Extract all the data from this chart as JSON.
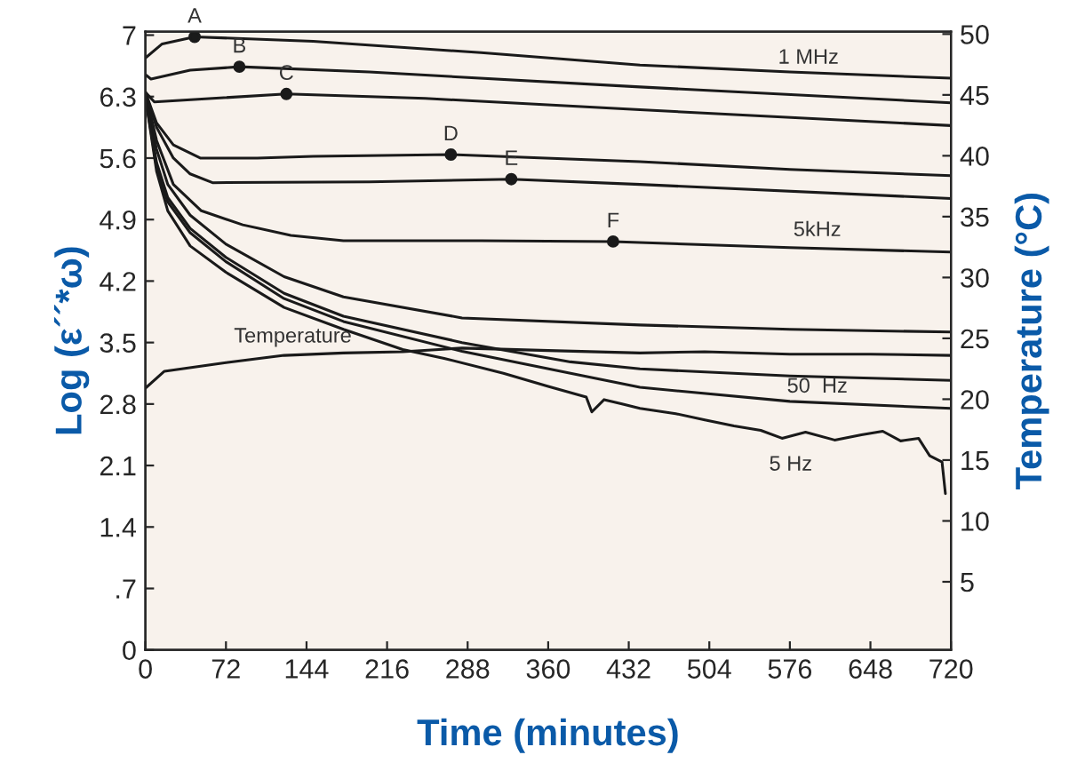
{
  "chart_data": {
    "type": "line",
    "xlabel": "Time (minutes)",
    "ylabel": "Log (ε´´*ω)",
    "y2label": "Temperature (°C)",
    "xlim": [
      0,
      720
    ],
    "xticks": [
      0,
      72,
      144,
      216,
      288,
      360,
      432,
      504,
      576,
      648,
      720
    ],
    "ylim": [
      0,
      7.04
    ],
    "yticks": [
      0,
      {
        "value": 0.7,
        "label": ".7"
      },
      1.4,
      2.1,
      2.8,
      3.5,
      4.2,
      4.9,
      5.6,
      6.3,
      7
    ],
    "y2lim": [
      -0.6,
      50.2
    ],
    "y2ticks": [
      5,
      10,
      15,
      20,
      25,
      30,
      35,
      40,
      45,
      50
    ],
    "grid": false,
    "legend": false,
    "line_style": "solid",
    "marker": "none",
    "series": [
      {
        "color": "#1a1a1a",
        "x": [
          0,
          15,
          44,
          150,
          300,
          442,
          576,
          720
        ],
        "values": [
          6.74,
          6.9,
          6.98,
          6.93,
          6.8,
          6.66,
          6.58,
          6.51
        ]
      },
      {
        "color": "#1a1a1a",
        "x": [
          0,
          5,
          40,
          84,
          200,
          442,
          720
        ],
        "values": [
          6.55,
          6.5,
          6.6,
          6.64,
          6.58,
          6.41,
          6.23
        ]
      },
      {
        "color": "#1a1a1a",
        "x": [
          0,
          8,
          60,
          126,
          250,
          442,
          720
        ],
        "values": [
          6.35,
          6.24,
          6.28,
          6.33,
          6.28,
          6.15,
          5.97
        ]
      },
      {
        "color": "#1a1a1a",
        "x": [
          0,
          10,
          25,
          49,
          100,
          150,
          273,
          442,
          576,
          720
        ],
        "values": [
          6.35,
          6.0,
          5.75,
          5.6,
          5.6,
          5.62,
          5.64,
          5.56,
          5.47,
          5.4
        ]
      },
      {
        "color": "#1a1a1a",
        "x": [
          0,
          10,
          25,
          40,
          60,
          200,
          327,
          442,
          720
        ],
        "values": [
          6.35,
          5.95,
          5.6,
          5.42,
          5.32,
          5.33,
          5.36,
          5.3,
          5.14
        ]
      },
      {
        "color": "#1a1a1a",
        "x": [
          0,
          10,
          25,
          50,
          87,
          130,
          177,
          300,
          418,
          576,
          720
        ],
        "values": [
          6.35,
          5.8,
          5.3,
          5.0,
          4.84,
          4.72,
          4.66,
          4.66,
          4.65,
          4.58,
          4.53
        ]
      },
      {
        "color": "#1a1a1a",
        "x": [
          0,
          10,
          20,
          40,
          72,
          124,
          177,
          283,
          442,
          576,
          720
        ],
        "values": [
          6.3,
          5.7,
          5.3,
          4.95,
          4.62,
          4.25,
          4.02,
          3.78,
          3.7,
          3.65,
          3.62
        ]
      },
      {
        "color": "#1a1a1a",
        "x": [
          0,
          10,
          20,
          40,
          72,
          124,
          177,
          283,
          380,
          442,
          576,
          720
        ],
        "values": [
          6.3,
          5.55,
          5.15,
          4.8,
          4.47,
          4.06,
          3.8,
          3.5,
          3.28,
          3.2,
          3.12,
          3.07
        ]
      },
      {
        "color": "#1a1a1a",
        "x": [
          0,
          10,
          20,
          40,
          72,
          124,
          177,
          283,
          380,
          442,
          576,
          720
        ],
        "values": [
          6.3,
          5.5,
          5.1,
          4.75,
          4.42,
          4.0,
          3.74,
          3.4,
          3.15,
          2.99,
          2.83,
          2.75
        ]
      },
      {
        "color": "#1a1a1a",
        "x": [
          0,
          10,
          20,
          40,
          72,
          124,
          177,
          230,
          267,
          320,
          360,
          394,
          399,
          410,
          426,
          442,
          474,
          500,
          526,
          550,
          569,
          590,
          616,
          640,
          659,
          675,
          691,
          701,
          712,
          715
        ],
        "values": [
          6.3,
          5.45,
          5.0,
          4.6,
          4.3,
          3.9,
          3.65,
          3.42,
          3.32,
          3.15,
          3.0,
          2.88,
          2.71,
          2.85,
          2.8,
          2.75,
          2.69,
          2.62,
          2.55,
          2.5,
          2.41,
          2.48,
          2.39,
          2.45,
          2.49,
          2.38,
          2.41,
          2.21,
          2.14,
          1.78
        ]
      },
      {
        "color": "#1a1a1a",
        "axis": "y2",
        "x": [
          0,
          17,
          72,
          124,
          177,
          230,
          283,
          360,
          442,
          500,
          576,
          648,
          720
        ],
        "values": [
          20.9,
          22.3,
          23.0,
          23.6,
          23.8,
          23.9,
          24.2,
          24.0,
          23.8,
          23.9,
          23.7,
          23.7,
          23.6
        ]
      },
      {
        "type": "scatter",
        "color": "#1a1a1a",
        "marker": "circle",
        "x": [
          44,
          84,
          126,
          273,
          327,
          418
        ],
        "values": [
          6.98,
          6.64,
          6.33,
          5.64,
          5.36,
          4.65
        ]
      }
    ],
    "annotations": [
      {
        "text": "A",
        "x": 44,
        "y": 6.98
      },
      {
        "text": "B",
        "x": 84,
        "y": 6.64
      },
      {
        "text": "C",
        "x": 126,
        "y": 6.33
      },
      {
        "text": "D",
        "x": 273,
        "y": 5.64
      },
      {
        "text": "E",
        "x": 327,
        "y": 5.36
      },
      {
        "text": "F",
        "x": 418,
        "y": 4.65
      },
      "1 MHz",
      "5kHz",
      "50  Hz",
      "5 Hz",
      "Temperature"
    ]
  }
}
